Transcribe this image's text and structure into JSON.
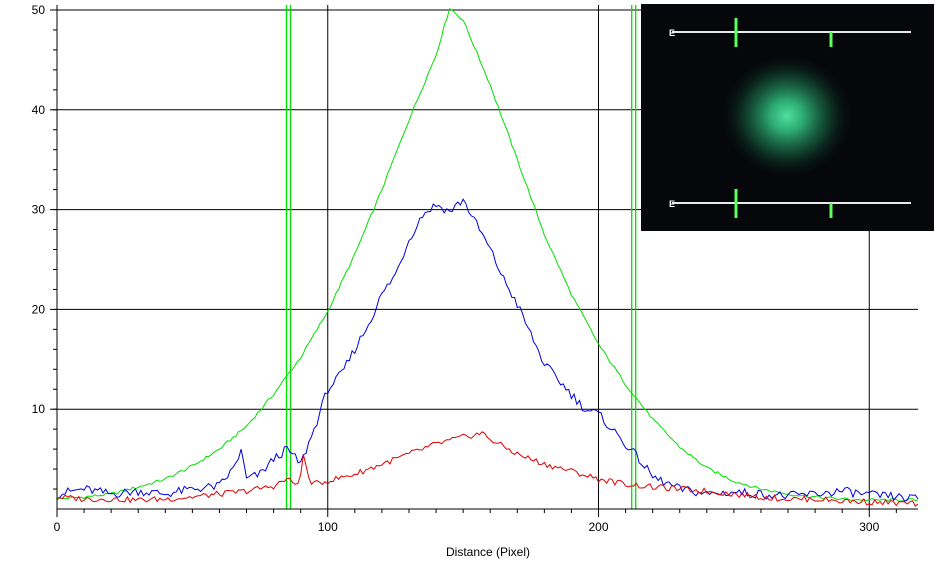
{
  "chart_data": {
    "type": "line",
    "title": "",
    "xlabel": "Distance (Pixel)",
    "ylabel": "",
    "xlim": [
      0,
      318
    ],
    "ylim": [
      0,
      50.5
    ],
    "x_ticks": [
      0,
      100,
      200,
      300
    ],
    "x_tick_labels": [
      "0",
      "100",
      "200",
      "300"
    ],
    "y_ticks": [
      10,
      20,
      30,
      40,
      50
    ],
    "y_tick_labels": [
      "10",
      "20",
      "30",
      "40",
      "50"
    ],
    "grid": true,
    "legend": "none",
    "series": [
      {
        "color": "#00e000",
        "x": [
          0,
          10,
          20,
          30,
          40,
          50,
          60,
          70,
          80,
          90,
          100,
          110,
          120,
          130,
          140,
          145,
          150,
          160,
          170,
          180,
          190,
          200,
          210,
          220,
          230,
          240,
          250,
          260,
          270,
          280,
          290,
          300,
          310,
          318
        ],
        "y": [
          1.0,
          1.2,
          1.5,
          2.2,
          3.0,
          4.3,
          6.0,
          8.3,
          11.5,
          15.2,
          19.8,
          25.5,
          32.0,
          39.0,
          45.5,
          50.2,
          49.0,
          42.5,
          35.0,
          27.5,
          21.5,
          16.5,
          12.5,
          9.0,
          6.2,
          4.1,
          2.8,
          2.0,
          1.5,
          1.2,
          1.0,
          0.9,
          0.9,
          0.9
        ]
      },
      {
        "color": "#0000e0",
        "x": [
          0,
          10,
          20,
          30,
          40,
          50,
          60,
          65,
          68,
          70,
          75,
          80,
          85,
          90,
          95,
          100,
          105,
          110,
          115,
          120,
          125,
          130,
          135,
          140,
          145,
          150,
          155,
          160,
          165,
          170,
          175,
          180,
          185,
          190,
          195,
          200,
          205,
          210,
          215,
          220,
          230,
          240,
          250,
          260,
          270,
          280,
          290,
          300,
          310,
          318
        ],
        "y": [
          1.5,
          2.0,
          1.5,
          1.8,
          1.5,
          2.0,
          2.3,
          4.0,
          5.8,
          3.0,
          3.5,
          5.0,
          6.0,
          4.5,
          8.0,
          12.0,
          13.5,
          16.0,
          18.5,
          21.5,
          23.5,
          27.0,
          29.5,
          30.5,
          29.8,
          31.0,
          28.5,
          26.0,
          23.0,
          20.5,
          17.5,
          14.5,
          13.0,
          11.5,
          10.0,
          9.5,
          8.0,
          6.5,
          5.0,
          3.2,
          2.0,
          1.5,
          1.7,
          1.5,
          1.3,
          1.5,
          1.8,
          1.4,
          1.2,
          1.0
        ]
      },
      {
        "color": "#e00000",
        "x": [
          0,
          10,
          20,
          30,
          40,
          50,
          60,
          70,
          80,
          85,
          88,
          90,
          91,
          93,
          95,
          100,
          110,
          120,
          130,
          140,
          150,
          157,
          160,
          170,
          180,
          190,
          200,
          210,
          220,
          230,
          240,
          250,
          260,
          270,
          280,
          290,
          300,
          310,
          318
        ],
        "y": [
          1.2,
          1.0,
          1.0,
          0.9,
          1.0,
          1.2,
          1.5,
          1.8,
          2.3,
          3.0,
          2.5,
          3.2,
          5.5,
          3.0,
          2.5,
          2.8,
          3.5,
          4.5,
          5.5,
          6.5,
          7.2,
          7.6,
          7.0,
          5.5,
          4.5,
          3.8,
          3.0,
          2.5,
          2.2,
          2.0,
          1.8,
          1.5,
          1.2,
          1.0,
          1.0,
          0.8,
          0.7,
          0.6,
          0.5
        ]
      }
    ],
    "markers": [
      {
        "color": "#00e000",
        "x": 85.5
      },
      {
        "color": "#00e000",
        "x": 213
      }
    ]
  },
  "inset": {
    "image": "green-star-image",
    "profile_lines": [
      {
        "label": "E"
      },
      {
        "label": "E"
      }
    ]
  }
}
